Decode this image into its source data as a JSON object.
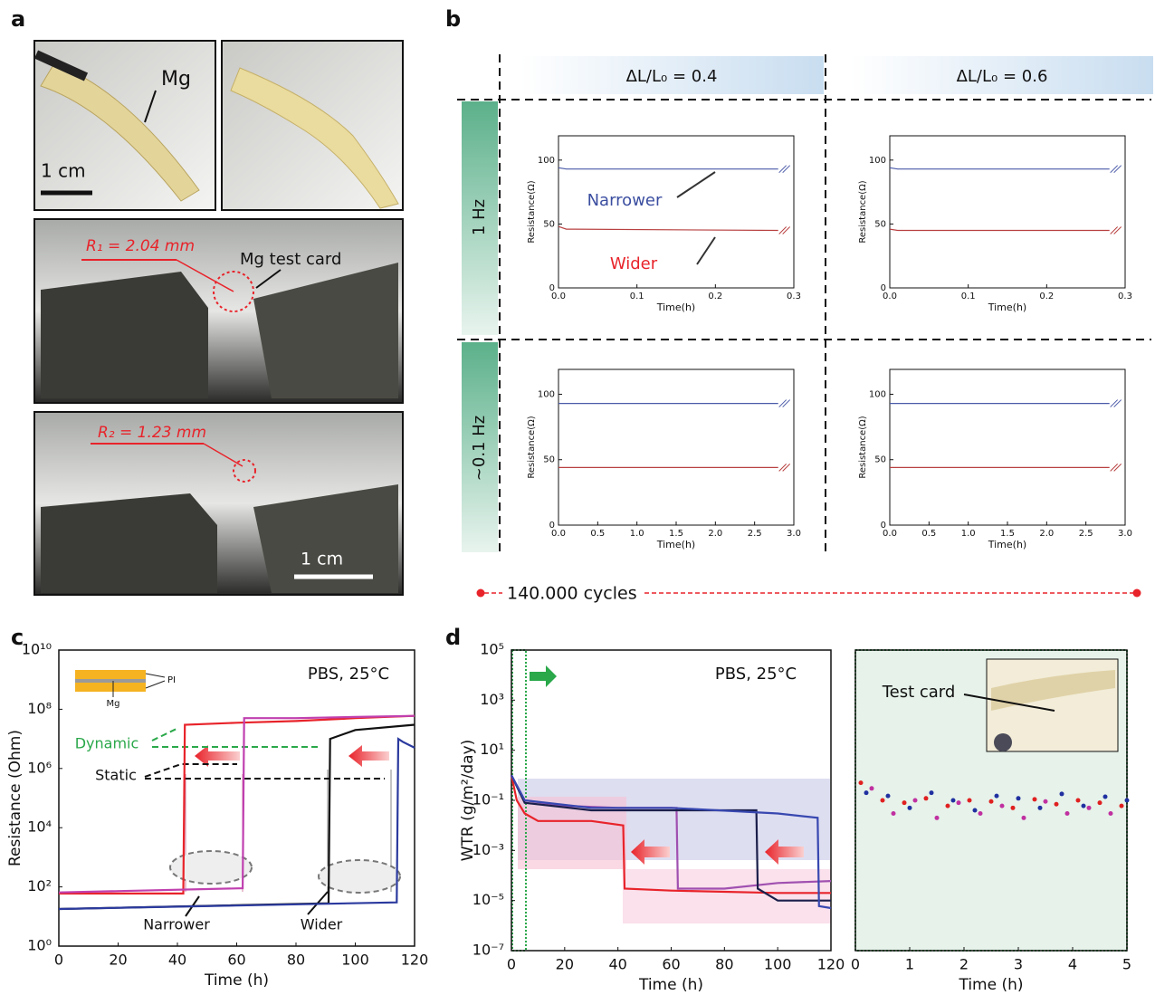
{
  "panel_labels": [
    "a",
    "b",
    "c",
    "d"
  ],
  "panel_a": {
    "mg_label": "Mg",
    "scale_top": "1 cm",
    "r1": "R₁ = 2.04 mm",
    "test_card": "Mg test card",
    "r2": "R₂ = 1.23 mm",
    "scale_bottom": "1 cm"
  },
  "panel_b": {
    "columns": [
      "ΔL/L₀ = 0.4",
      "ΔL/L₀ = 0.6"
    ],
    "rows": [
      "1 Hz",
      "~0.1 Hz"
    ],
    "cycles": "140.000 cycles"
  },
  "chart_data": [
    {
      "type": "line",
      "xlabel": "Time(h)",
      "ylabel": "Resistance(Ω)",
      "xlim": [
        0,
        0.3
      ],
      "ylim": [
        0,
        119
      ],
      "xticks": [
        {
          "value": 0,
          "label": "0.0"
        },
        0.1,
        0.2,
        0.3
      ],
      "yticks": [
        0,
        50,
        100
      ],
      "series": [
        {
          "name": "Narrower",
          "color": "#4a5aa8",
          "x": [
            0,
            0.01,
            0.28
          ],
          "values": [
            94,
            93,
            93
          ]
        },
        {
          "name": "Wider",
          "color": "#b84040",
          "x": [
            0,
            0.01,
            0.28
          ],
          "values": [
            48,
            46,
            45
          ]
        }
      ]
    },
    {
      "type": "line",
      "xlabel": "Time(h)",
      "ylabel": "Resistance(Ω)",
      "xlim": [
        0,
        0.3
      ],
      "ylim": [
        0,
        119
      ],
      "xticks": [
        {
          "value": 0,
          "label": "0.0"
        },
        0.1,
        0.2,
        0.3
      ],
      "yticks": [
        0,
        50,
        100
      ],
      "series": [
        {
          "color": "#4a5aa8",
          "x": [
            0,
            0.01,
            0.28
          ],
          "values": [
            94,
            93,
            93
          ]
        },
        {
          "color": "#b84040",
          "x": [
            0,
            0.01,
            0.28
          ],
          "values": [
            46,
            45,
            45
          ]
        }
      ]
    },
    {
      "type": "line",
      "xlabel": "Time(h)",
      "ylabel": "Resistance(Ω)",
      "xlim": [
        0,
        3
      ],
      "ylim": [
        0,
        119
      ],
      "xticks": [
        {
          "value": 0,
          "label": "0.0"
        },
        0.5,
        {
          "value": 1,
          "label": "1.0"
        },
        1.5,
        {
          "value": 2,
          "label": "2.0"
        },
        2.5,
        {
          "value": 3,
          "label": "3.0"
        }
      ],
      "yticks": [
        0,
        50,
        100
      ],
      "series": [
        {
          "color": "#4a5aa8",
          "x": [
            0,
            2.8
          ],
          "values": [
            93,
            93
          ]
        },
        {
          "color": "#b84040",
          "x": [
            0,
            2.8
          ],
          "values": [
            44,
            44
          ]
        }
      ]
    },
    {
      "type": "line",
      "xlabel": "Time(h)",
      "ylabel": "Resistance(Ω)",
      "xlim": [
        0,
        3
      ],
      "ylim": [
        0,
        119
      ],
      "xticks": [
        {
          "value": 0,
          "label": "0.0"
        },
        0.5,
        {
          "value": 1,
          "label": "1.0"
        },
        1.5,
        {
          "value": 2,
          "label": "2.0"
        },
        2.5,
        {
          "value": 3,
          "label": "3.0"
        }
      ],
      "yticks": [
        0,
        50,
        100
      ],
      "series": [
        {
          "color": "#4a5aa8",
          "x": [
            0,
            2.8
          ],
          "values": [
            93,
            93
          ]
        },
        {
          "color": "#b84040",
          "x": [
            0,
            2.8
          ],
          "values": [
            44,
            44
          ]
        }
      ]
    },
    {
      "type": "line",
      "xlabel": "Time (h)",
      "ylabel": "Resistance (Ohm)",
      "log_y": true,
      "xlim": [
        0,
        120
      ],
      "ylim": [
        1,
        10000000000
      ],
      "xticks": [
        0,
        20,
        40,
        60,
        80,
        100,
        120
      ],
      "yticks": [
        {
          "value": 1,
          "label": "10⁰"
        },
        {
          "value": 100,
          "label": "10²"
        },
        {
          "value": 10000,
          "label": "10⁴"
        },
        {
          "value": 1000000,
          "label": "10⁶"
        },
        {
          "value": 100000000,
          "label": "10⁸"
        },
        {
          "value": 10000000000,
          "label": "10¹⁰"
        }
      ],
      "annotations": [
        "PBS, 25°C",
        "Dynamic",
        "Static",
        "Narrower",
        "Wider",
        "PI",
        "Mg"
      ],
      "series": [
        {
          "color": "#e8232a",
          "x": [
            0,
            42,
            42.5,
            60,
            80,
            100,
            120
          ],
          "values": [
            60,
            60,
            30000000,
            35000000,
            40000000,
            50000000,
            60000000
          ]
        },
        {
          "color": "#c040b0",
          "x": [
            0,
            62,
            62.5,
            80,
            100,
            120
          ],
          "values": [
            65,
            90,
            50000000,
            50000000,
            55000000,
            60000000
          ]
        },
        {
          "color": "#111111",
          "x": [
            0,
            91,
            91.5,
            100,
            120
          ],
          "values": [
            18,
            28,
            10000000,
            20000000,
            30000000
          ]
        },
        {
          "color": "#2b3a9e",
          "x": [
            0,
            114,
            114.5,
            116,
            120
          ],
          "values": [
            18,
            30,
            10000000,
            8000000,
            5000000
          ]
        }
      ]
    },
    {
      "type": "line",
      "xlabel": "Time (h)",
      "ylabel": "WTR (g/m²/day)",
      "log_y": true,
      "xlim": [
        0,
        120
      ],
      "ylim": [
        1e-07,
        100000
      ],
      "xticks": [
        0,
        20,
        40,
        60,
        80,
        100,
        120
      ],
      "yticks": [
        {
          "value": 1e-07,
          "label": "10⁻⁷"
        },
        {
          "value": 1e-05,
          "label": "10⁻⁵"
        },
        {
          "value": 0.001,
          "label": "10⁻³"
        },
        {
          "value": 0.1,
          "label": "10⁻¹"
        },
        {
          "value": 10,
          "label": "10¹"
        },
        {
          "value": 1000,
          "label": "10³"
        },
        {
          "value": 100000,
          "label": "10⁵"
        }
      ],
      "annotations": [
        "PBS, 25°C"
      ],
      "series": [
        {
          "color": "#e8232a",
          "x": [
            0,
            2,
            5,
            10,
            30,
            42,
            42.5,
            60,
            100,
            120
          ],
          "values": [
            1,
            0.1,
            0.03,
            0.015,
            0.015,
            0.01,
            3e-05,
            2.5e-05,
            2e-05,
            2e-05
          ]
        },
        {
          "color": "#a050b0",
          "x": [
            0,
            5,
            20,
            40,
            62,
            62.5,
            80,
            100,
            120
          ],
          "values": [
            1,
            0.1,
            0.06,
            0.05,
            0.05,
            3e-05,
            3e-05,
            5e-05,
            6e-05
          ]
        },
        {
          "color": "#1a1f4a",
          "x": [
            0,
            5,
            30,
            60,
            92,
            92.5,
            100,
            120
          ],
          "values": [
            1,
            0.08,
            0.04,
            0.04,
            0.04,
            3e-05,
            1e-05,
            1e-05
          ]
        },
        {
          "color": "#3848b0",
          "x": [
            0,
            5,
            30,
            60,
            100,
            115,
            115.5,
            120
          ],
          "values": [
            1,
            0.1,
            0.05,
            0.05,
            0.03,
            0.02,
            6e-06,
            5e-06
          ]
        }
      ]
    },
    {
      "type": "scatter",
      "xlabel": "Time (h)",
      "log_y": true,
      "xlim": [
        0,
        5
      ],
      "ylim": [
        1e-07,
        100000
      ],
      "xticks": [
        0,
        1,
        2,
        3,
        4,
        5
      ],
      "annotations": [
        "Test card"
      ],
      "series": [
        {
          "color": "#e02020",
          "x": [
            0.1,
            0.5,
            0.9,
            1.3,
            1.7,
            2.1,
            2.5,
            2.9,
            3.3,
            3.7,
            4.1,
            4.5,
            4.9
          ],
          "values": [
            0.5,
            0.1,
            0.08,
            0.12,
            0.06,
            0.1,
            0.09,
            0.05,
            0.11,
            0.07,
            0.1,
            0.08,
            0.06
          ]
        },
        {
          "color": "#2030a0",
          "x": [
            0.2,
            0.6,
            1.0,
            1.4,
            1.8,
            2.2,
            2.6,
            3.0,
            3.4,
            3.8,
            4.2,
            4.6,
            5.0
          ],
          "values": [
            0.2,
            0.15,
            0.05,
            0.2,
            0.1,
            0.04,
            0.15,
            0.12,
            0.05,
            0.18,
            0.06,
            0.14,
            0.1
          ]
        },
        {
          "color": "#c030a0",
          "x": [
            0.3,
            0.7,
            1.1,
            1.5,
            1.9,
            2.3,
            2.7,
            3.1,
            3.5,
            3.9,
            4.3,
            4.7
          ],
          "values": [
            0.3,
            0.03,
            0.1,
            0.02,
            0.08,
            0.03,
            0.06,
            0.02,
            0.09,
            0.03,
            0.05,
            0.03
          ]
        }
      ]
    }
  ]
}
